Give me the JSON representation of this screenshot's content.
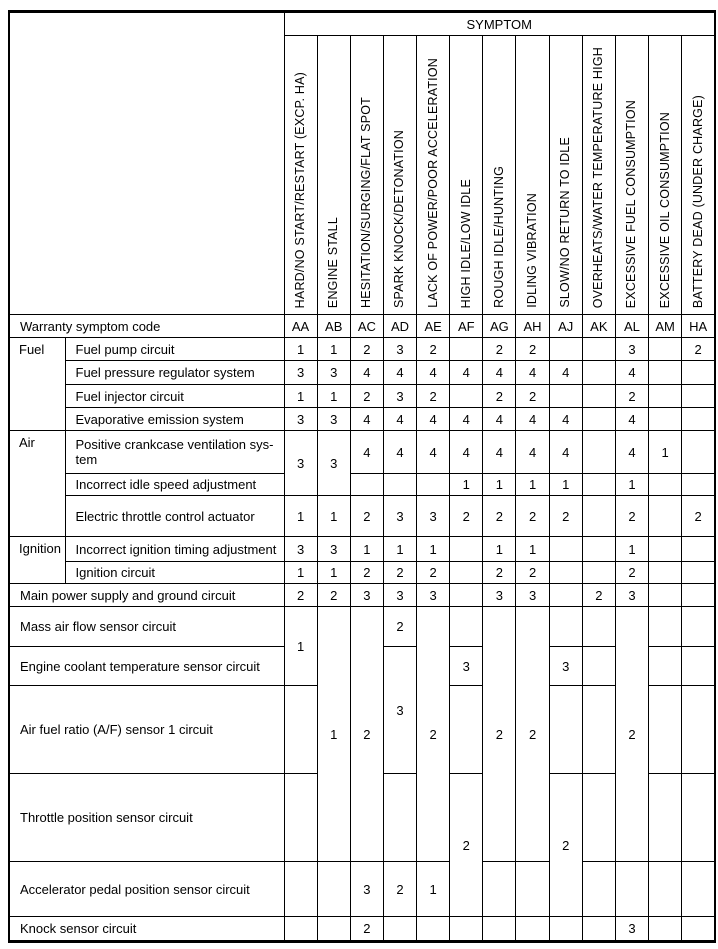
{
  "table": {
    "symptom_header": "SYMPTOM",
    "warranty_label": "Warranty symptom code",
    "columns": [
      {
        "code": "AA",
        "label": "HARD/NO START/RESTART (EXCP. HA)"
      },
      {
        "code": "AB",
        "label": "ENGINE STALL"
      },
      {
        "code": "AC",
        "label": "HESITATION/SURGING/FLAT SPOT"
      },
      {
        "code": "AD",
        "label": "SPARK KNOCK/DETONATION"
      },
      {
        "code": "AE",
        "label": "LACK OF POWER/POOR ACCELERATION"
      },
      {
        "code": "AF",
        "label": "HIGH IDLE/LOW IDLE"
      },
      {
        "code": "AG",
        "label": "ROUGH IDLE/HUNTING"
      },
      {
        "code": "AH",
        "label": "IDLING VIBRATION"
      },
      {
        "code": "AJ",
        "label": "SLOW/NO RETURN TO IDLE"
      },
      {
        "code": "AK",
        "label": "OVERHEATS/WATER TEMPERATURE HIGH"
      },
      {
        "code": "AL",
        "label": "EXCESSIVE FUEL CONSUMPTION"
      },
      {
        "code": "AM",
        "label": "EXCESSIVE OIL CONSUMPTION"
      },
      {
        "code": "HA",
        "label": "BATTERY DEAD (UNDER CHARGE)"
      }
    ],
    "rows": [
      {
        "group": {
          "label": "Fuel",
          "rs": 4
        },
        "label": "Fuel pump circuit",
        "cells": [
          "1",
          "1",
          "2",
          "3",
          "2",
          "",
          "2",
          "2",
          "",
          "",
          "3",
          "",
          "2"
        ]
      },
      {
        "label": "Fuel pressure regulator system",
        "cells": [
          "3",
          "3",
          "4",
          "4",
          "4",
          "4",
          "4",
          "4",
          "4",
          "",
          "4",
          "",
          ""
        ]
      },
      {
        "label": "Fuel injector circuit",
        "cells": [
          "1",
          "1",
          "2",
          "3",
          "2",
          "",
          "2",
          "2",
          "",
          "",
          "2",
          "",
          ""
        ]
      },
      {
        "label": "Evaporative emission system",
        "cells": [
          "3",
          "3",
          "4",
          "4",
          "4",
          "4",
          "4",
          "4",
          "4",
          "",
          "4",
          "",
          ""
        ]
      },
      {
        "group": {
          "label": "Air",
          "rs": 3
        },
        "label": "Positive crankcase ventilation sys-\ntem",
        "cells": [
          {
            "v": "3",
            "rs": 2
          },
          {
            "v": "3",
            "rs": 2
          },
          "4",
          "4",
          "4",
          "4",
          "4",
          "4",
          "4",
          "",
          "4",
          "1",
          ""
        ]
      },
      {
        "label": "Incorrect idle speed adjustment",
        "cells": [
          null,
          null,
          "",
          "",
          "",
          "1",
          "1",
          "1",
          "1",
          "",
          "1",
          "",
          ""
        ]
      },
      {
        "label": "Electric throttle control actuator",
        "cells": [
          "1",
          "1",
          "2",
          "3",
          "3",
          "2",
          "2",
          "2",
          "2",
          "",
          "2",
          "",
          "2"
        ]
      },
      {
        "group": {
          "label": "Ignition",
          "rs": 2
        },
        "label": "Incorrect ignition timing adjustment",
        "cells": [
          "3",
          "3",
          "1",
          "1",
          "1",
          "",
          "1",
          "1",
          "",
          "",
          "1",
          "",
          ""
        ]
      },
      {
        "label": "Ignition circuit",
        "cells": [
          "1",
          "1",
          "2",
          "2",
          "2",
          "",
          "2",
          "2",
          "",
          "",
          "2",
          "",
          ""
        ]
      },
      {
        "span2": true,
        "label": "Main power supply and ground circuit",
        "cells": [
          "2",
          "2",
          "3",
          "3",
          "3",
          "",
          "3",
          "3",
          "",
          "2",
          "3",
          "",
          ""
        ]
      },
      {
        "span2": true,
        "label": "Mass air flow sensor circuit",
        "cells": [
          {
            "v": "1",
            "rs": 2
          },
          {
            "v": "1",
            "rs": 4
          },
          {
            "v": "2",
            "rs": 4
          },
          "2",
          {
            "v": "2",
            "rs": 4
          },
          "",
          {
            "v": "2",
            "rs": 4
          },
          {
            "v": "2",
            "rs": 4
          },
          "",
          "",
          {
            "v": "2",
            "rs": 4
          },
          "",
          ""
        ]
      },
      {
        "span2": true,
        "label": "Engine coolant temperature sensor circuit",
        "cells": [
          null,
          null,
          null,
          {
            "v": "3",
            "rs": 2
          },
          null,
          "3",
          null,
          null,
          "3",
          "",
          null,
          "",
          ""
        ]
      },
      {
        "span2": true,
        "label": "Air fuel ratio (A/F) sensor 1 circuit",
        "cells": [
          "",
          null,
          null,
          null,
          null,
          "",
          null,
          null,
          "",
          "",
          null,
          "",
          ""
        ]
      },
      {
        "span2": true,
        "label": "Throttle position sensor circuit",
        "cells": [
          "",
          null,
          null,
          "",
          null,
          {
            "v": "2",
            "rs": 2
          },
          null,
          null,
          {
            "v": "2",
            "rs": 2
          },
          "",
          null,
          "",
          ""
        ]
      },
      {
        "span2": true,
        "label": "Accelerator pedal position sensor circuit",
        "cells": [
          "",
          "",
          "3",
          "2",
          "1",
          null,
          "",
          "",
          null,
          "",
          "",
          "",
          ""
        ]
      },
      {
        "span2": true,
        "label": "Knock sensor circuit",
        "cells": [
          "",
          "",
          "2",
          "",
          "",
          "",
          "",
          "",
          "",
          "",
          "3",
          "",
          ""
        ]
      }
    ]
  }
}
